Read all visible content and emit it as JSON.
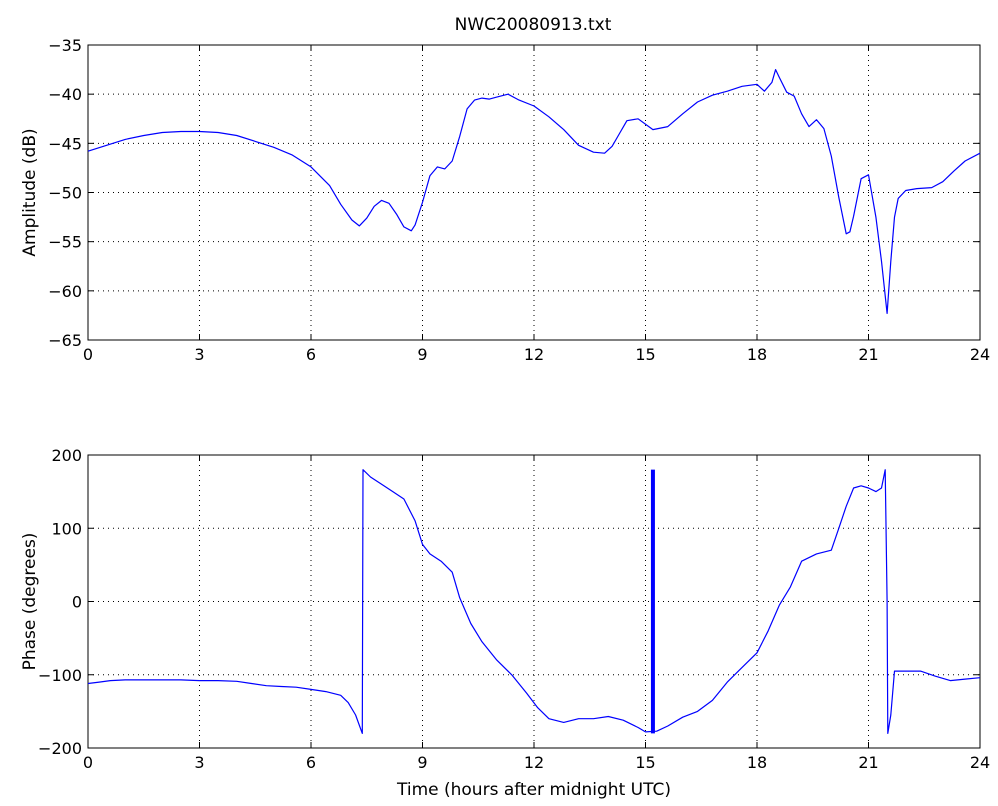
{
  "figure": {
    "title": "NWC20080913.txt"
  },
  "chart_data": [
    {
      "type": "line",
      "ylabel": "Amplitude (dB)",
      "xlabel": "",
      "xlim": [
        0,
        24
      ],
      "ylim": [
        -65,
        -35
      ],
      "xticks": [
        "0",
        "3",
        "6",
        "9",
        "12",
        "15",
        "18",
        "21",
        "24"
      ],
      "yticks": [
        "−35",
        "−40",
        "−45",
        "−50",
        "−55",
        "−60",
        "−65"
      ],
      "grid": true,
      "color": "#0000ff",
      "series": [
        {
          "x": [
            0,
            0.5,
            1,
            1.5,
            2,
            2.5,
            3,
            3.5,
            4,
            4.5,
            5,
            5.5,
            6,
            6.5,
            6.8,
            7.1,
            7.3,
            7.5,
            7.7,
            7.9,
            8.1,
            8.3,
            8.5,
            8.7,
            8.8,
            9.0,
            9.2,
            9.4,
            9.6,
            9.8,
            10.0,
            10.2,
            10.4,
            10.6,
            10.8,
            11.0,
            11.3,
            11.6,
            12.0,
            12.4,
            12.8,
            13.2,
            13.6,
            13.9,
            14.1,
            14.3,
            14.5,
            14.8,
            15.2,
            15.6,
            16.0,
            16.4,
            16.8,
            17.2,
            17.6,
            18.0,
            18.2,
            18.4,
            18.5,
            18.6,
            18.8,
            19.0,
            19.2,
            19.4,
            19.6,
            19.8,
            20.0,
            20.2,
            20.4,
            20.5,
            20.6,
            20.8,
            21.0,
            21.2,
            21.35,
            21.5,
            21.6,
            21.7,
            21.8,
            22.0,
            22.3,
            22.7,
            23.0,
            23.3,
            23.6,
            24.0
          ],
          "y": [
            -45.8,
            -45.2,
            -44.6,
            -44.2,
            -43.9,
            -43.8,
            -43.8,
            -43.9,
            -44.2,
            -44.8,
            -45.4,
            -46.2,
            -47.4,
            -49.3,
            -51.2,
            -52.8,
            -53.4,
            -52.6,
            -51.4,
            -50.8,
            -51.1,
            -52.2,
            -53.5,
            -53.9,
            -53.3,
            -51.0,
            -48.3,
            -47.4,
            -47.6,
            -46.8,
            -44.3,
            -41.5,
            -40.6,
            -40.4,
            -40.5,
            -40.3,
            -40.0,
            -40.6,
            -41.2,
            -42.3,
            -43.6,
            -45.2,
            -45.9,
            -46.0,
            -45.3,
            -44.0,
            -42.7,
            -42.5,
            -43.6,
            -43.3,
            -42.0,
            -40.8,
            -40.1,
            -39.7,
            -39.2,
            -39.0,
            -39.7,
            -38.8,
            -37.5,
            -38.3,
            -39.8,
            -40.2,
            -42.0,
            -43.3,
            -42.6,
            -43.5,
            -46.3,
            -50.5,
            -54.2,
            -54.0,
            -52.4,
            -48.6,
            -48.2,
            -52.5,
            -57.0,
            -62.3,
            -57.0,
            -52.5,
            -50.6,
            -49.8,
            -49.6,
            -49.5,
            -48.9,
            -47.8,
            -46.8,
            -46.0
          ]
        }
      ]
    },
    {
      "type": "line",
      "ylabel": "Phase (degrees)",
      "xlabel": "Time (hours after midnight UTC)",
      "xlim": [
        0,
        24
      ],
      "ylim": [
        -200,
        200
      ],
      "xticks": [
        "0",
        "3",
        "6",
        "9",
        "12",
        "15",
        "18",
        "21",
        "24"
      ],
      "yticks": [
        "200",
        "100",
        "0",
        "−100",
        "−200"
      ],
      "grid": true,
      "color": "#0000ff",
      "series": [
        {
          "x": [
            0,
            0.3,
            0.6,
            1,
            1.5,
            2,
            2.5,
            3,
            3.5,
            4,
            4.4,
            4.8,
            5.2,
            5.6,
            6.0,
            6.4,
            6.8,
            7.0,
            7.2,
            7.38,
            7.4,
            7.6,
            7.9,
            8.2,
            8.5,
            8.8,
            9.0,
            9.2,
            9.5,
            9.8,
            10.0,
            10.3,
            10.6,
            11.0,
            11.4,
            11.8,
            12.1,
            12.4,
            12.8,
            13.2,
            13.6,
            14.0,
            14.4,
            14.8,
            15.0,
            15.3,
            15.6,
            16.0,
            16.4,
            16.8,
            17.2,
            17.5,
            17.8,
            18.0,
            18.3,
            18.6,
            18.9,
            19.2,
            19.6,
            20.0,
            20.2,
            20.4,
            20.6,
            20.8,
            21.0,
            21.2,
            21.35,
            21.45,
            21.5,
            21.52,
            21.6,
            21.7,
            22.0,
            22.4,
            22.8,
            23.2,
            23.6,
            24.0
          ],
          "y": [
            -112,
            -110,
            -108,
            -107,
            -107,
            -107,
            -107,
            -108,
            -108,
            -109,
            -112,
            -115,
            -116,
            -117,
            -120,
            -123,
            -128,
            -138,
            -155,
            -180,
            180,
            170,
            160,
            150,
            140,
            110,
            78,
            65,
            55,
            40,
            5,
            -30,
            -55,
            -80,
            -100,
            -125,
            -145,
            -160,
            -165,
            -160,
            -160,
            -157,
            -162,
            -172,
            -178,
            -177,
            -170,
            -158,
            -150,
            -135,
            -110,
            -95,
            -80,
            -70,
            -40,
            -5,
            20,
            55,
            65,
            70,
            100,
            130,
            155,
            158,
            155,
            150,
            155,
            180,
            0,
            -180,
            -155,
            -95,
            -95,
            -95,
            -102,
            -108,
            -106,
            -104
          ]
        },
        {
          "name": "",
          "x": [
            15.2,
            15.2
          ],
          "y": [
            -180,
            180
          ],
          "thick": true
        }
      ]
    }
  ]
}
